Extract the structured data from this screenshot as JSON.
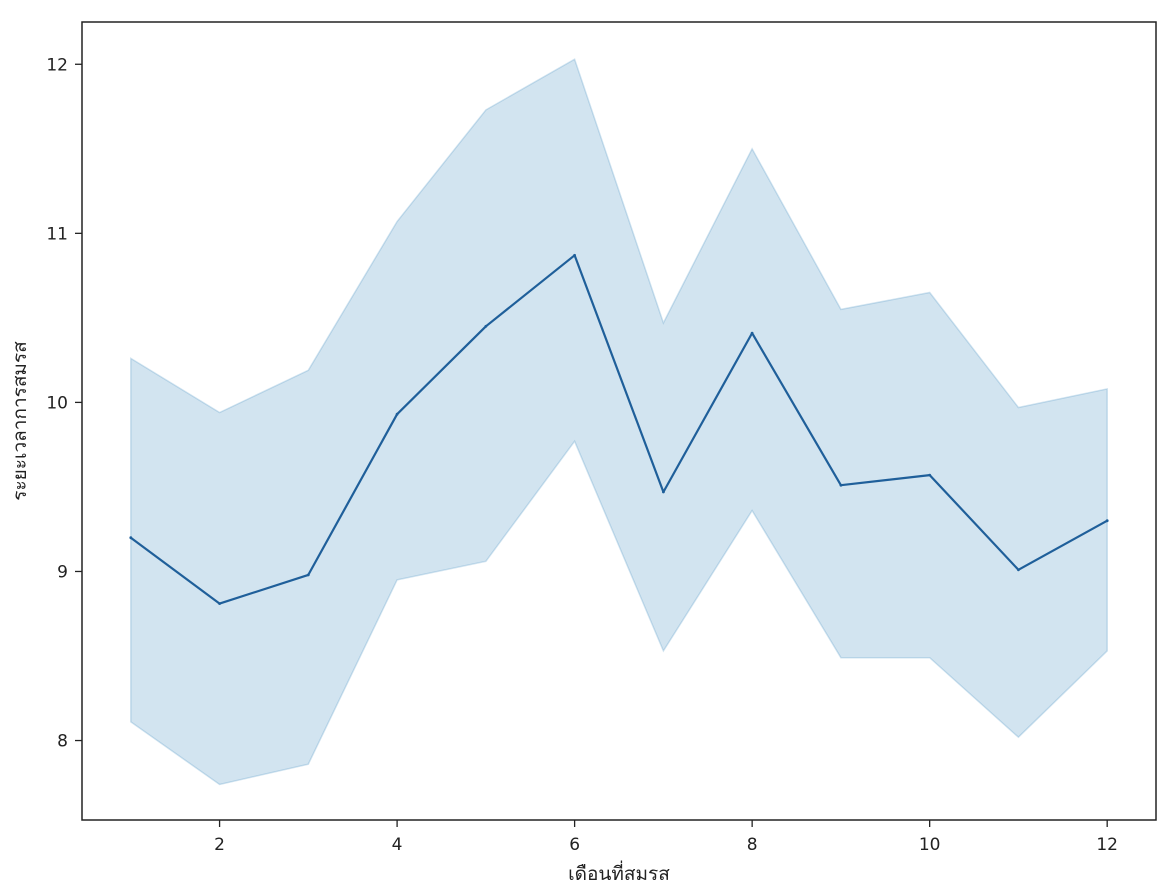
{
  "chart_data": {
    "type": "line",
    "title": "",
    "xlabel": "เดือนที่สมรส",
    "ylabel": "ระยะเวลาการสมรส",
    "xlim": [
      0.45,
      12.55
    ],
    "ylim": [
      7.53,
      12.25
    ],
    "x_ticks": [
      2,
      4,
      6,
      8,
      10,
      12
    ],
    "y_ticks": [
      8,
      9,
      10,
      11,
      12
    ],
    "grid": false,
    "legend": "none",
    "series": [
      {
        "x": [
          1,
          2,
          3,
          4,
          5,
          6,
          7,
          8,
          9,
          10,
          11,
          12
        ],
        "values": [
          9.2,
          8.81,
          8.98,
          9.93,
          10.45,
          10.87,
          9.47,
          10.41,
          9.51,
          9.57,
          9.01,
          9.3
        ],
        "ci_lower": [
          8.11,
          7.74,
          7.86,
          8.95,
          9.06,
          9.77,
          8.53,
          9.36,
          8.49,
          8.49,
          8.02,
          8.53
        ],
        "ci_upper": [
          10.26,
          9.94,
          10.19,
          11.07,
          11.73,
          12.03,
          10.47,
          11.5,
          10.55,
          10.65,
          9.97,
          10.08
        ],
        "line_color": "#1f5f9a",
        "band_color": "#1f77b4"
      }
    ]
  }
}
